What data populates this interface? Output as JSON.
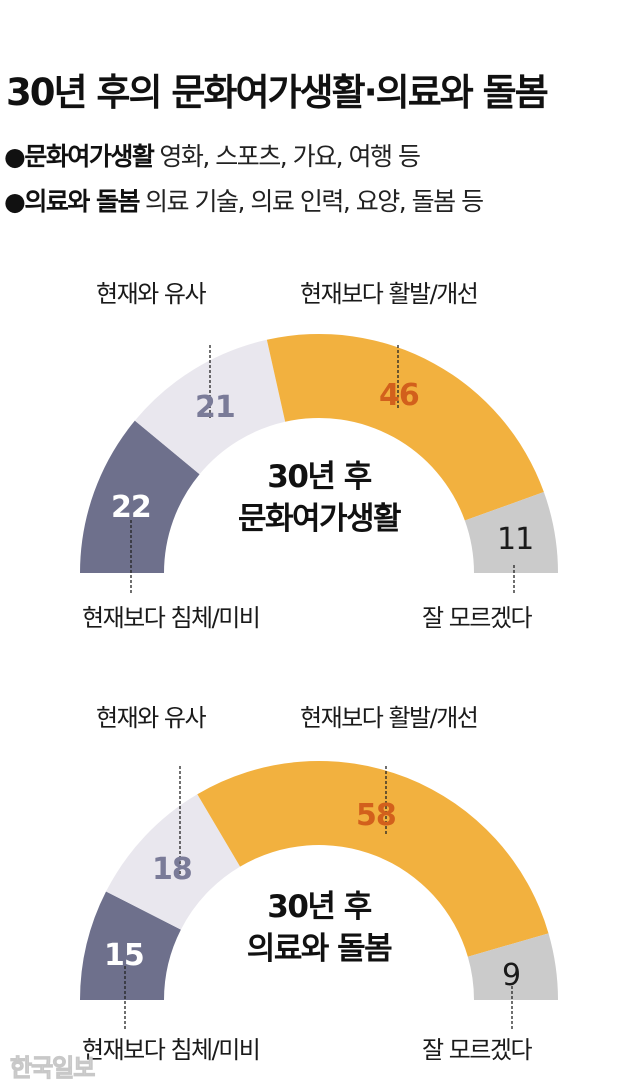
{
  "header": {
    "title": "30년 후의 문화여가생활·의료와 돌봄",
    "legend": [
      {
        "bullet": "●",
        "term": "문화여가생활",
        "desc": "영화, 스포츠, 가요, 여행 등"
      },
      {
        "bullet": "●",
        "term": "의료와 돌봄",
        "desc": "의료 기술, 의료 인력, 요양, 돌봄 등"
      }
    ]
  },
  "colors": {
    "stagnant": "#6e708c",
    "similar": "#e9e7ee",
    "improved": "#f2b13f",
    "unknown": "#cbcbcb",
    "improved_text": "#d2601c",
    "similar_text": "#7a7b98"
  },
  "chart_data": [
    {
      "type": "pie",
      "subtype": "semi-donut",
      "title": "30년 후 문화여가생활",
      "categories": [
        "현재보다 침체/미비",
        "현재와 유사",
        "현재보다 활발/개선",
        "잘 모르겠다"
      ],
      "values": [
        22,
        21,
        46,
        11
      ],
      "unit": "%"
    },
    {
      "type": "pie",
      "subtype": "semi-donut",
      "title": "30년 후 의료와 돌봄",
      "categories": [
        "현재보다 침체/미비",
        "현재와 유사",
        "현재보다 활발/개선",
        "잘 모르겠다"
      ],
      "values": [
        15,
        18,
        58,
        9
      ],
      "unit": "%"
    }
  ],
  "charts": [
    {
      "center_line1": "30년 후",
      "center_line2": "문화여가생활",
      "labels": {
        "stagnant": "현재보다 침체/미비",
        "similar": "현재와 유사",
        "improved": "현재보다 활발/개선",
        "unknown": "잘 모르겠다"
      },
      "values": {
        "stagnant": "22",
        "similar": "21",
        "improved": "46",
        "unknown": "11"
      }
    },
    {
      "center_line1": "30년 후",
      "center_line2": "의료와 돌봄",
      "labels": {
        "stagnant": "현재보다 침체/미비",
        "similar": "현재와 유사",
        "improved": "현재보다 활발/개선",
        "unknown": "잘 모르겠다"
      },
      "values": {
        "stagnant": "15",
        "similar": "18",
        "improved": "58",
        "unknown": "9"
      }
    }
  ],
  "watermark": "한국일보"
}
